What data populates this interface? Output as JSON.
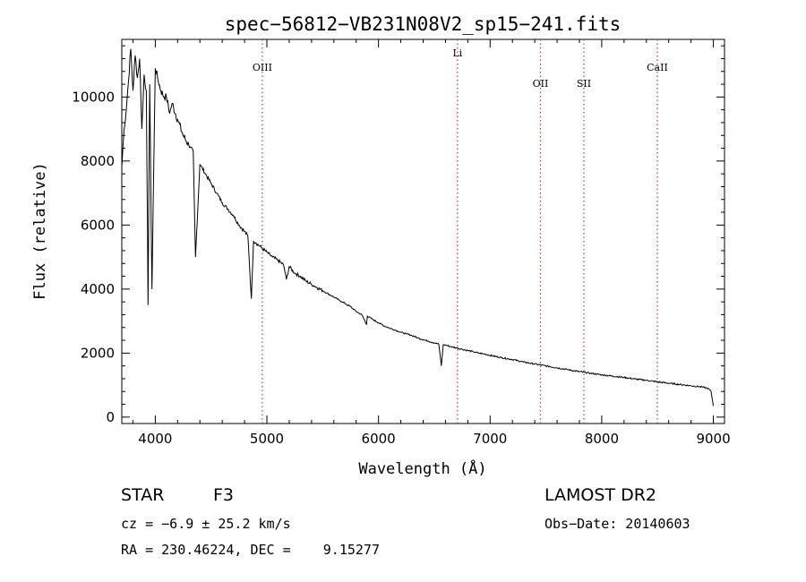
{
  "chart_data": {
    "type": "line",
    "title": "spec−56812−VB231N08V2_sp15−241.fits",
    "xlabel": "Wavelength (Å)",
    "ylabel": "Flux (relative)",
    "xlim": [
      3700,
      9100
    ],
    "ylim": [
      -200,
      11800
    ],
    "x_ticks": [
      4000,
      5000,
      6000,
      7000,
      8000,
      9000
    ],
    "y_ticks": [
      0,
      2000,
      4000,
      6000,
      8000,
      10000
    ],
    "line_color": "#000000",
    "marker_color": "#cc3333",
    "lines": [
      {
        "name": "OIII",
        "x": 4959
      },
      {
        "name": "Li",
        "x": 6708
      },
      {
        "name": "OII",
        "x": 7451
      },
      {
        "name": "SII",
        "x": 7840
      },
      {
        "name": "CaII",
        "x": 8498
      }
    ],
    "series": [
      {
        "x": [
          3700,
          3720,
          3740,
          3760,
          3780,
          3800,
          3820,
          3840,
          3860,
          3880,
          3900,
          3920,
          3935,
          3950,
          3970,
          4000,
          4020,
          4050,
          4080,
          4100,
          4130,
          4150,
          4200,
          4250,
          4300,
          4340,
          4360,
          4400,
          4450,
          4500,
          4550,
          4600,
          4650,
          4700,
          4750,
          4800,
          4830,
          4861,
          4880,
          4900,
          4950,
          5000,
          5050,
          5100,
          5150,
          5175,
          5200,
          5250,
          5300,
          5350,
          5400,
          5450,
          5500,
          5550,
          5600,
          5650,
          5700,
          5750,
          5800,
          5850,
          5893,
          5900,
          5950,
          6000,
          6050,
          6100,
          6150,
          6200,
          6250,
          6300,
          6350,
          6400,
          6450,
          6500,
          6540,
          6563,
          6580,
          6600,
          6650,
          6700,
          6750,
          6800,
          6850,
          6900,
          6950,
          7000,
          7100,
          7200,
          7300,
          7400,
          7500,
          7600,
          7700,
          7800,
          7900,
          8000,
          8100,
          8200,
          8300,
          8400,
          8500,
          8600,
          8700,
          8800,
          8900,
          8950,
          8980,
          9000
        ],
        "y": [
          7800,
          9000,
          9600,
          10500,
          11500,
          10200,
          11300,
          10600,
          11200,
          9000,
          10700,
          10200,
          3500,
          10400,
          4000,
          10900,
          10600,
          10200,
          10000,
          10000,
          9500,
          9800,
          9300,
          8800,
          8500,
          8300,
          5000,
          7900,
          7600,
          7300,
          7000,
          6700,
          6500,
          6300,
          6000,
          5800,
          5650,
          3700,
          5500,
          5450,
          5300,
          5150,
          5000,
          4900,
          4750,
          4300,
          4700,
          4500,
          4400,
          4250,
          4150,
          4050,
          3950,
          3850,
          3750,
          3650,
          3550,
          3450,
          3300,
          3200,
          2900,
          3150,
          3050,
          2950,
          2850,
          2780,
          2720,
          2650,
          2600,
          2550,
          2480,
          2420,
          2370,
          2320,
          2280,
          1600,
          2260,
          2250,
          2200,
          2160,
          2120,
          2080,
          2040,
          2000,
          1970,
          1930,
          1860,
          1800,
          1720,
          1660,
          1600,
          1540,
          1480,
          1420,
          1370,
          1320,
          1280,
          1240,
          1190,
          1150,
          1100,
          1060,
          1020,
          980,
          940,
          900,
          800,
          350
        ]
      }
    ]
  },
  "footer": {
    "object_type": "STAR",
    "subclass": "F3",
    "survey": "LAMOST DR2",
    "cz": "cz = −6.9 ± 25.2 km/s",
    "obs_date": "Obs−Date: 20140603",
    "coords": "RA = 230.46224, DEC =    9.15277"
  }
}
